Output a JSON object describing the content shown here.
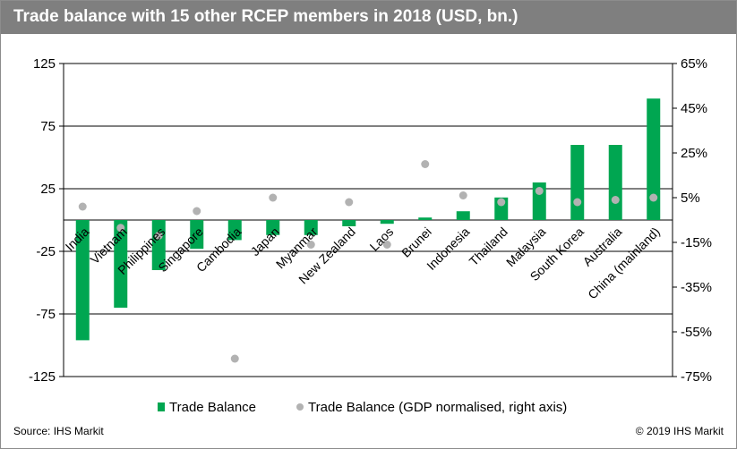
{
  "title": "Trade balance with 15 other RCEP members in 2018 (USD, bn.)",
  "source": "Source: IHS Markit",
  "copyright": "© 2019 IHS Markit",
  "colors": {
    "bar": "#00a651",
    "dot": "#b2b2b2",
    "title_bg": "#7f7f7f"
  },
  "chart_data": {
    "type": "bar",
    "title": "Trade balance with 15 other RCEP members in 2018 (USD, bn.)",
    "categories": [
      "India",
      "Vietnam",
      "Philippines",
      "Singapore",
      "Cambodia",
      "Japan",
      "Myanmar",
      "New Zealand",
      "Laos",
      "Brunei",
      "Indonesia",
      "Thailand",
      "Malaysia",
      "South Korea",
      "Australia",
      "China (mainland)"
    ],
    "series": [
      {
        "name": "Trade Balance",
        "type": "bar",
        "axis": "left",
        "values": [
          -96,
          -70,
          -40,
          -23,
          -16,
          -12,
          -12,
          -5,
          -3,
          2,
          7,
          18,
          30,
          60,
          60,
          97
        ]
      },
      {
        "name": "Trade Balance (GDP normalised, right axis)",
        "type": "scatter",
        "axis": "right",
        "values": [
          1,
          -8.5,
          -12,
          -1,
          -67,
          5,
          -16,
          3,
          -16,
          20,
          6,
          3,
          8,
          3,
          4,
          5
        ]
      }
    ],
    "y_left": {
      "min": -125,
      "max": 125,
      "ticks": [
        125,
        75,
        25,
        -25,
        -75,
        -125
      ]
    },
    "y_right": {
      "min": -75,
      "max": 65,
      "ticks": [
        "65%",
        "45%",
        "25%",
        "5%",
        "-15%",
        "-35%",
        "-55%",
        "-75%"
      ]
    },
    "grid": true,
    "legend_position": "bottom"
  }
}
